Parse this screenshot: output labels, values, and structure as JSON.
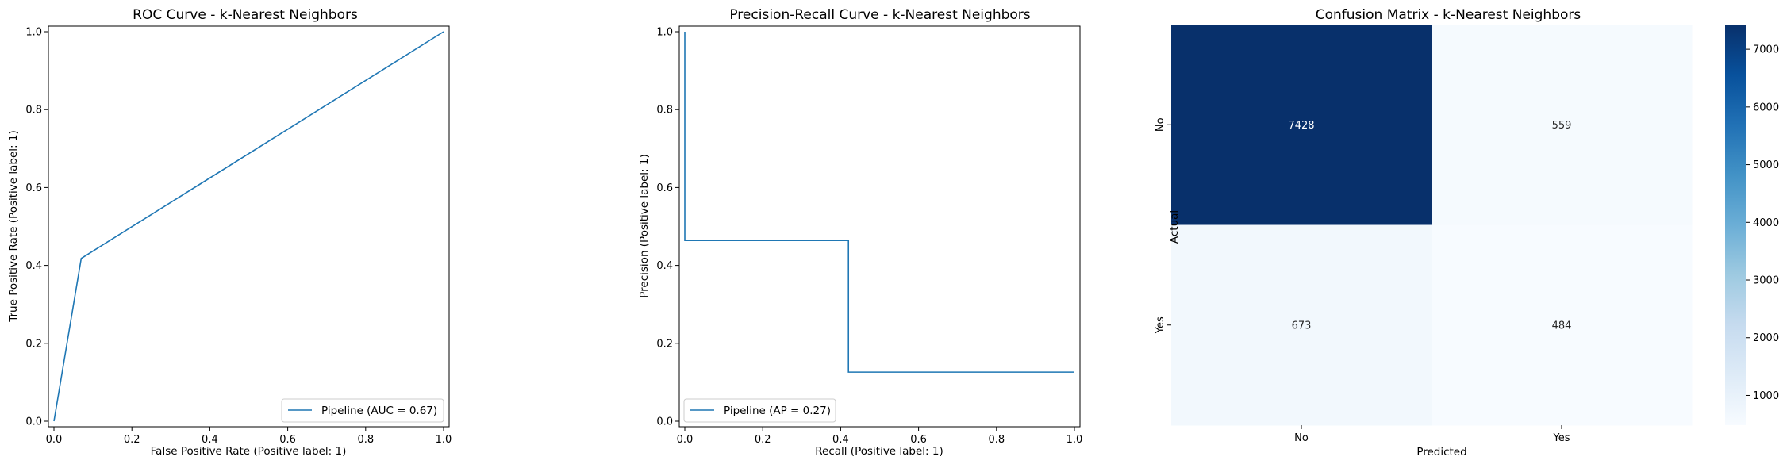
{
  "colors": {
    "line": "#1f77b4",
    "cmap_low": "#f7fbff",
    "cmap_high": "#08306b",
    "text_dark": "#262626",
    "text_light": "#ffffff"
  },
  "chart_data": [
    {
      "type": "line",
      "title": "ROC Curve - k-Nearest Neighbors",
      "xlabel": "False Positive Rate (Positive label: 1)",
      "ylabel": "True Positive Rate (Positive label: 1)",
      "xlim": [
        0,
        1
      ],
      "ylim": [
        0,
        1
      ],
      "ticks": [
        "0.0",
        "0.2",
        "0.4",
        "0.6",
        "0.8",
        "1.0"
      ],
      "series": [
        {
          "name": "Pipeline (AUC = 0.67)",
          "x": [
            0.0,
            0.07,
            1.0
          ],
          "y": [
            0.0,
            0.418,
            1.0
          ]
        }
      ],
      "legend_position": "lower-right",
      "grid": false
    },
    {
      "type": "line",
      "title": "Precision-Recall Curve - k-Nearest Neighbors",
      "xlabel": "Recall (Positive label: 1)",
      "ylabel": "Precision (Positive label: 1)",
      "xlim": [
        0,
        1
      ],
      "ylim": [
        0,
        1
      ],
      "ticks": [
        "0.0",
        "0.2",
        "0.4",
        "0.6",
        "0.8",
        "1.0"
      ],
      "series": [
        {
          "name": "Pipeline (AP = 0.27)",
          "x": [
            0.0,
            0.0,
            0.42,
            0.42,
            1.0
          ],
          "y": [
            1.0,
            0.464,
            0.464,
            0.126,
            0.126
          ]
        }
      ],
      "legend_position": "lower-left",
      "grid": false
    },
    {
      "type": "heatmap",
      "title": "Confusion Matrix - k-Nearest Neighbors",
      "xlabel": "Predicted",
      "ylabel": "Actual",
      "x_categories": [
        "No",
        "Yes"
      ],
      "y_categories": [
        "No",
        "Yes"
      ],
      "values": [
        [
          7428,
          559
        ],
        [
          673,
          484
        ]
      ],
      "colorbar": {
        "min": 484,
        "max": 7428,
        "ticks": [
          "1000",
          "2000",
          "3000",
          "4000",
          "5000",
          "6000",
          "7000"
        ]
      }
    }
  ]
}
